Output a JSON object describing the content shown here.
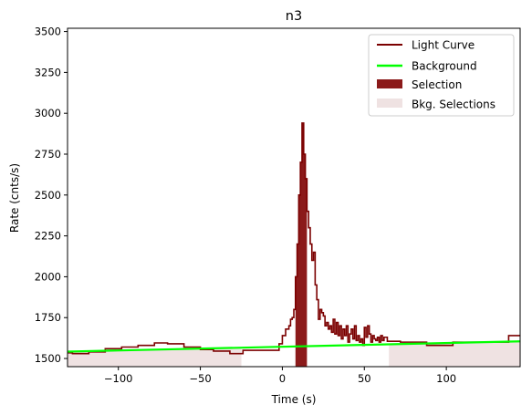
{
  "chart_data": {
    "type": "line",
    "title": "n3",
    "xlabel": "Time (s)",
    "ylabel": "Rate (cnts/s)",
    "xlim": [
      -131,
      145
    ],
    "ylim": [
      1450,
      3520
    ],
    "x_ticks": [
      -100,
      -50,
      0,
      50,
      100
    ],
    "x_tick_labels": [
      "−100",
      "−50",
      "0",
      "50",
      "100"
    ],
    "y_ticks": [
      1500,
      1750,
      2000,
      2250,
      2500,
      2750,
      3000,
      3250,
      3500
    ],
    "y_tick_labels": [
      "1500",
      "1750",
      "2000",
      "2250",
      "2500",
      "2750",
      "3000",
      "3250",
      "3500"
    ],
    "grid": false,
    "legend_position": "top-right",
    "colors": {
      "light_curve": "#7b0000",
      "background": "#00ff00",
      "selection": "#8b1a1a",
      "bkg_selections": "#efe2e2"
    },
    "series": [
      {
        "name": "Light Curve",
        "kind": "step",
        "x": [
          -131,
          -128,
          -118,
          -108,
          -98,
          -88,
          -78,
          -70,
          -60,
          -50,
          -42,
          -32,
          -24,
          -14,
          -2,
          0,
          2,
          4,
          5,
          6,
          7,
          8,
          9,
          10,
          11,
          12,
          13,
          14,
          15,
          16,
          17,
          18,
          19,
          20,
          21,
          22,
          23,
          24,
          25,
          26,
          27,
          28,
          29,
          30,
          31,
          32,
          33,
          34,
          35,
          36,
          37,
          38,
          39,
          40,
          41,
          42,
          43,
          44,
          45,
          46,
          47,
          48,
          49,
          50,
          51,
          52,
          53,
          54,
          55,
          56,
          57,
          58,
          59,
          60,
          61,
          62,
          64,
          72,
          88,
          104,
          122,
          138,
          145
        ],
        "y": [
          1535,
          1530,
          1540,
          1560,
          1570,
          1580,
          1595,
          1590,
          1570,
          1555,
          1545,
          1530,
          1550,
          1550,
          1590,
          1640,
          1680,
          1700,
          1740,
          1750,
          1800,
          2000,
          2200,
          2500,
          2700,
          2940,
          2750,
          2600,
          2400,
          2300,
          2200,
          2100,
          2150,
          1950,
          1860,
          1740,
          1800,
          1780,
          1760,
          1700,
          1720,
          1680,
          1700,
          1660,
          1740,
          1650,
          1720,
          1640,
          1700,
          1620,
          1680,
          1640,
          1700,
          1600,
          1650,
          1680,
          1620,
          1700,
          1610,
          1640,
          1600,
          1620,
          1580,
          1690,
          1630,
          1700,
          1650,
          1600,
          1640,
          1620,
          1610,
          1630,
          1600,
          1640,
          1610,
          1630,
          1605,
          1600,
          1580,
          1600,
          1600,
          1640,
          1640
        ]
      },
      {
        "name": "Background",
        "kind": "line",
        "x": [
          -131,
          145
        ],
        "y": [
          1542,
          1605
        ]
      }
    ],
    "selection": {
      "name": "Selection",
      "x_range": [
        8,
        15
      ]
    },
    "bkg_selections": {
      "name": "Bkg. Selections",
      "x_ranges": [
        [
          -131,
          -25
        ],
        [
          65,
          145
        ]
      ]
    },
    "legend": [
      "Light Curve",
      "Background",
      "Selection",
      "Bkg. Selections"
    ]
  }
}
